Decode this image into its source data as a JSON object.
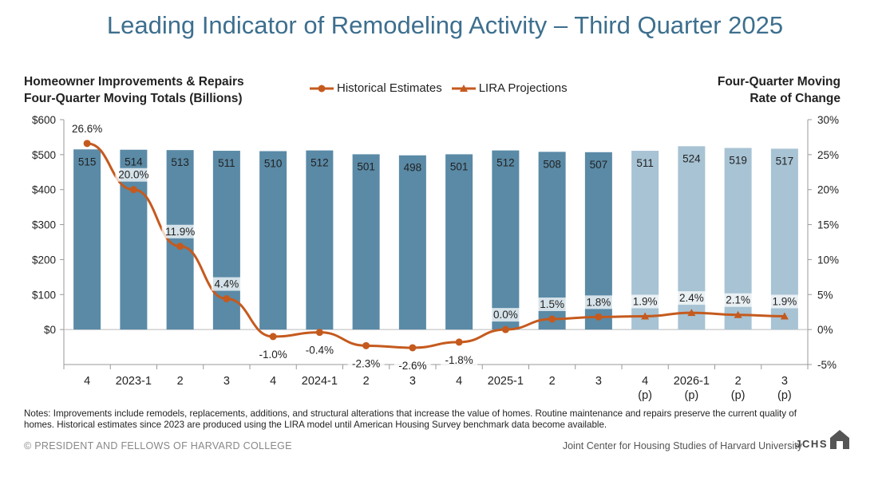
{
  "title": "Leading Indicator of Remodeling Activity – Third Quarter 2025",
  "left_header": [
    "Homeowner Improvements & Repairs",
    "Four-Quarter Moving Totals (Billions)"
  ],
  "right_header": [
    "Four-Quarter Moving",
    "Rate of Change"
  ],
  "legend": {
    "historical": "Historical Estimates",
    "projection": "LIRA Projections"
  },
  "colors": {
    "title": "#3d6f8e",
    "bar_historical": "#5a8aa6",
    "bar_projection": "#a7c3d4",
    "line": "#c55a1e",
    "label_box": "#ffffff"
  },
  "chart_data": {
    "type": "bar+line",
    "categories": [
      "4",
      "2023-1",
      "2",
      "3",
      "4",
      "2024-1",
      "2",
      "3",
      "4",
      "2025-1",
      "2",
      "3",
      "4",
      "2026-1",
      "2",
      "3"
    ],
    "category_sublabels": [
      "",
      "",
      "",
      "",
      "",
      "",
      "",
      "",
      "",
      "",
      "",
      "",
      "(p)",
      "(p)",
      "(p)",
      "(p)"
    ],
    "bar_values": [
      515,
      514,
      513,
      511,
      510,
      512,
      501,
      498,
      501,
      512,
      508,
      507,
      511,
      524,
      519,
      517
    ],
    "bar_labels": [
      "515",
      "514",
      "513",
      "511",
      "510",
      "512",
      "501",
      "498",
      "501",
      "512",
      "508",
      "507",
      "511",
      "524",
      "519",
      "517"
    ],
    "rate_values": [
      26.6,
      20.0,
      11.9,
      4.4,
      -1.0,
      -0.4,
      -2.3,
      -2.6,
      -1.8,
      0.0,
      1.5,
      1.8,
      1.9,
      2.4,
      2.1,
      1.9
    ],
    "rate_labels": [
      "26.6%",
      "20.0%",
      "11.9%",
      "4.4%",
      "-1.0%",
      "-0.4%",
      "-2.3%",
      "-2.6%",
      "-1.8%",
      "0.0%",
      "1.5%",
      "1.8%",
      "1.9%",
      "2.4%",
      "2.1%",
      "1.9%"
    ],
    "projection_start_index": 12,
    "left_axis": {
      "range": [
        -100,
        600
      ],
      "ticks": [
        0,
        100,
        200,
        300,
        400,
        500,
        600
      ],
      "tick_labels": [
        "$0",
        "$100",
        "$200",
        "$300",
        "$400",
        "$500",
        "$600"
      ]
    },
    "right_axis": {
      "range": [
        -5,
        30
      ],
      "ticks": [
        -5,
        0,
        5,
        10,
        15,
        20,
        25,
        30
      ],
      "tick_labels": [
        "-5%",
        "0%",
        "5%",
        "10%",
        "15%",
        "20%",
        "25%",
        "30%"
      ]
    },
    "series": [
      {
        "name": "Historical Estimates",
        "kind": "line",
        "indices": [
          0,
          11
        ]
      },
      {
        "name": "LIRA Projections",
        "kind": "line",
        "indices": [
          12,
          15
        ]
      }
    ]
  },
  "notes": "Notes: Improvements include remodels, replacements, additions, and structural alterations that increase the value of homes. Routine maintenance and repairs preserve the current quality of homes. Historical estimates since 2023 are produced using the LIRA model until American Housing Survey benchmark data become available.",
  "copyright": "© PRESIDENT AND FELLOWS OF HARVARD COLLEGE",
  "credit": "Joint Center for Housing Studies of Harvard University",
  "logo_text": "JCHS"
}
